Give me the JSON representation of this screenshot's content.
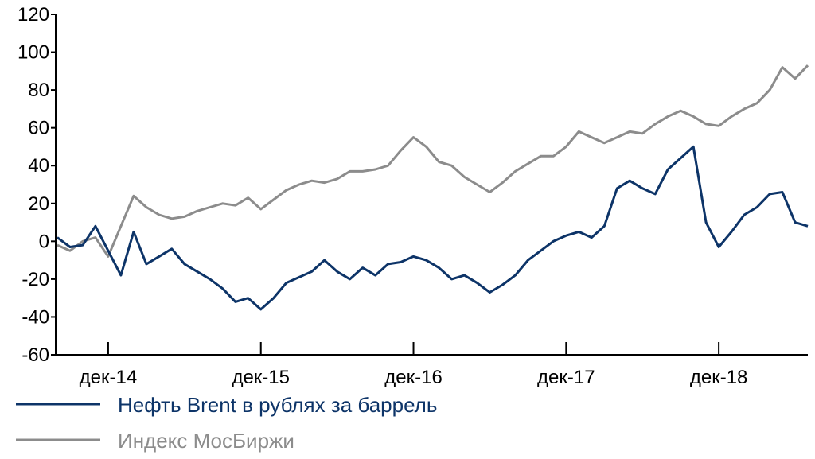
{
  "chart_data": {
    "type": "line",
    "title": "",
    "xlabel": "",
    "ylabel": "",
    "ylim": [
      -60,
      120
    ],
    "y_ticks": [
      -60,
      -40,
      -20,
      0,
      20,
      40,
      60,
      80,
      100,
      120
    ],
    "y_tick_labels": [
      "-60",
      "-40",
      "-20",
      "0",
      "20",
      "40",
      "60",
      "80",
      "100",
      "120"
    ],
    "x_ticks": [
      {
        "date": "2014-12",
        "label": "дек-14"
      },
      {
        "date": "2015-12",
        "label": "дек-15"
      },
      {
        "date": "2016-12",
        "label": "дек-16"
      },
      {
        "date": "2017-12",
        "label": "дек-17"
      },
      {
        "date": "2018-12",
        "label": "дек-18"
      }
    ],
    "xlim": [
      "2014-08",
      "2019-07"
    ],
    "grid": false,
    "legend_position": "bottom-left",
    "series": [
      {
        "name": "Нефть Brent в рублях за баррель",
        "color": "#0d3468",
        "points": [
          [
            "2014-08",
            2
          ],
          [
            "2014-09",
            -3
          ],
          [
            "2014-10",
            -2
          ],
          [
            "2014-11",
            8
          ],
          [
            "2014-12",
            -5
          ],
          [
            "2015-01",
            -18
          ],
          [
            "2015-02",
            5
          ],
          [
            "2015-03",
            -12
          ],
          [
            "2015-04",
            -8
          ],
          [
            "2015-05",
            -4
          ],
          [
            "2015-06",
            -12
          ],
          [
            "2015-07",
            -16
          ],
          [
            "2015-08",
            -20
          ],
          [
            "2015-09",
            -25
          ],
          [
            "2015-10",
            -32
          ],
          [
            "2015-11",
            -30
          ],
          [
            "2015-12",
            -36
          ],
          [
            "2016-01",
            -30
          ],
          [
            "2016-02",
            -22
          ],
          [
            "2016-03",
            -19
          ],
          [
            "2016-04",
            -16
          ],
          [
            "2016-05",
            -10
          ],
          [
            "2016-06",
            -16
          ],
          [
            "2016-07",
            -20
          ],
          [
            "2016-08",
            -14
          ],
          [
            "2016-09",
            -18
          ],
          [
            "2016-10",
            -12
          ],
          [
            "2016-11",
            -11
          ],
          [
            "2016-12",
            -8
          ],
          [
            "2017-01",
            -10
          ],
          [
            "2017-02",
            -14
          ],
          [
            "2017-03",
            -20
          ],
          [
            "2017-04",
            -18
          ],
          [
            "2017-05",
            -22
          ],
          [
            "2017-06",
            -27
          ],
          [
            "2017-07",
            -23
          ],
          [
            "2017-08",
            -18
          ],
          [
            "2017-09",
            -10
          ],
          [
            "2017-10",
            -5
          ],
          [
            "2017-11",
            0
          ],
          [
            "2017-12",
            3
          ],
          [
            "2018-01",
            5
          ],
          [
            "2018-02",
            2
          ],
          [
            "2018-03",
            8
          ],
          [
            "2018-04",
            28
          ],
          [
            "2018-05",
            32
          ],
          [
            "2018-06",
            28
          ],
          [
            "2018-07",
            25
          ],
          [
            "2018-08",
            38
          ],
          [
            "2018-09",
            44
          ],
          [
            "2018-10",
            50
          ],
          [
            "2018-11",
            10
          ],
          [
            "2018-12",
            -3
          ],
          [
            "2019-01",
            5
          ],
          [
            "2019-02",
            14
          ],
          [
            "2019-03",
            18
          ],
          [
            "2019-04",
            25
          ],
          [
            "2019-05",
            26
          ],
          [
            "2019-06",
            10
          ],
          [
            "2019-07",
            8
          ]
        ]
      },
      {
        "name": "Индекс МосБиржи",
        "color": "#8c8c8c",
        "points": [
          [
            "2014-08",
            -2
          ],
          [
            "2014-09",
            -5
          ],
          [
            "2014-10",
            0
          ],
          [
            "2014-11",
            2
          ],
          [
            "2014-12",
            -8
          ],
          [
            "2015-01",
            8
          ],
          [
            "2015-02",
            24
          ],
          [
            "2015-03",
            18
          ],
          [
            "2015-04",
            14
          ],
          [
            "2015-05",
            12
          ],
          [
            "2015-06",
            13
          ],
          [
            "2015-07",
            16
          ],
          [
            "2015-08",
            18
          ],
          [
            "2015-09",
            20
          ],
          [
            "2015-10",
            19
          ],
          [
            "2015-11",
            23
          ],
          [
            "2015-12",
            17
          ],
          [
            "2016-01",
            22
          ],
          [
            "2016-02",
            27
          ],
          [
            "2016-03",
            30
          ],
          [
            "2016-04",
            32
          ],
          [
            "2016-05",
            31
          ],
          [
            "2016-06",
            33
          ],
          [
            "2016-07",
            37
          ],
          [
            "2016-08",
            37
          ],
          [
            "2016-09",
            38
          ],
          [
            "2016-10",
            40
          ],
          [
            "2016-11",
            48
          ],
          [
            "2016-12",
            55
          ],
          [
            "2017-01",
            50
          ],
          [
            "2017-02",
            42
          ],
          [
            "2017-03",
            40
          ],
          [
            "2017-04",
            34
          ],
          [
            "2017-05",
            30
          ],
          [
            "2017-06",
            26
          ],
          [
            "2017-07",
            31
          ],
          [
            "2017-08",
            37
          ],
          [
            "2017-09",
            41
          ],
          [
            "2017-10",
            45
          ],
          [
            "2017-11",
            45
          ],
          [
            "2017-12",
            50
          ],
          [
            "2018-01",
            58
          ],
          [
            "2018-02",
            55
          ],
          [
            "2018-03",
            52
          ],
          [
            "2018-04",
            55
          ],
          [
            "2018-05",
            58
          ],
          [
            "2018-06",
            57
          ],
          [
            "2018-07",
            62
          ],
          [
            "2018-08",
            66
          ],
          [
            "2018-09",
            69
          ],
          [
            "2018-10",
            66
          ],
          [
            "2018-11",
            62
          ],
          [
            "2018-12",
            61
          ],
          [
            "2019-01",
            66
          ],
          [
            "2019-02",
            70
          ],
          [
            "2019-03",
            73
          ],
          [
            "2019-04",
            80
          ],
          [
            "2019-05",
            92
          ],
          [
            "2019-06",
            86
          ],
          [
            "2019-07",
            93
          ]
        ]
      }
    ]
  }
}
